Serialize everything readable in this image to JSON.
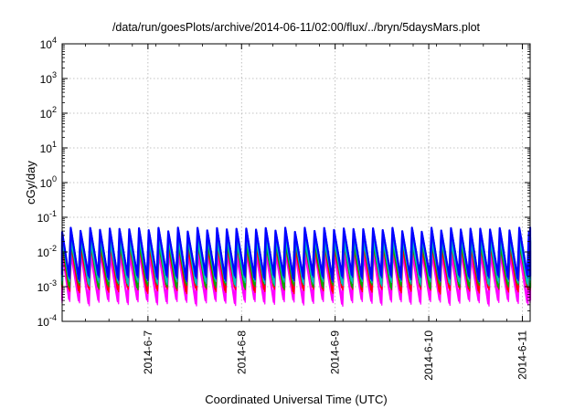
{
  "chart_data": {
    "type": "line",
    "title": "/data/run/goesPlots/archive/2014-06-11/02:00/flux/../bryn/5daysMars.plot",
    "xlabel": "Coordinated Universal Time (UTC)",
    "ylabel": "cGy/day",
    "yscale": "log",
    "ylim": [
      0.0001,
      10000
    ],
    "xlim": [
      "2014-06-06 02:00",
      "2014-06-11 02:00"
    ],
    "grid": true,
    "legend": "none",
    "y_ticks": [
      {
        "value": 0.0001,
        "base": "10",
        "exp": "-4"
      },
      {
        "value": 0.001,
        "base": "10",
        "exp": "-3"
      },
      {
        "value": 0.01,
        "base": "10",
        "exp": "-2"
      },
      {
        "value": 0.1,
        "base": "10",
        "exp": "-1"
      },
      {
        "value": 1,
        "base": "10",
        "exp": "0"
      },
      {
        "value": 10,
        "base": "10",
        "exp": "1"
      },
      {
        "value": 100,
        "base": "10",
        "exp": "2"
      },
      {
        "value": 1000,
        "base": "10",
        "exp": "3"
      },
      {
        "value": 10000,
        "base": "10",
        "exp": "4"
      }
    ],
    "x_ticks": [
      "2014-6-7",
      "2014-6-8",
      "2014-6-9",
      "2014-6-10",
      "2014-6-11"
    ],
    "sawtooth_period_hours": 2.5,
    "series": [
      {
        "color": "#0000ff",
        "peak": 0.05,
        "trough": 0.002
      },
      {
        "color": "#00bfbf",
        "peak": 0.03,
        "trough": 0.0015
      },
      {
        "color": "#00aa00",
        "peak": 0.025,
        "trough": 0.0012
      },
      {
        "color": "#ff0000",
        "peak": 0.02,
        "trough": 0.0009
      },
      {
        "color": "#ff00ff",
        "peak": 0.012,
        "trough": 0.0004
      }
    ]
  }
}
